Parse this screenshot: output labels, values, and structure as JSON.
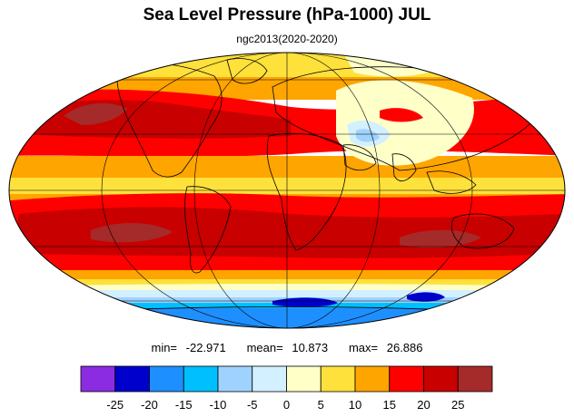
{
  "title": "Sea Level Pressure (hPa-1000) JUL",
  "subtitle": "ngc2013(2020-2020)",
  "stats": {
    "min_label": "min=",
    "min_value": "-22.971",
    "mean_label": "mean=",
    "mean_value": "10.873",
    "max_label": "max=",
    "max_value": "26.886"
  },
  "colorbar": {
    "colors": [
      "#8b2be2",
      "#0000cd",
      "#1e8fff",
      "#00bfff",
      "#a0d2ff",
      "#d2f0ff",
      "#ffffc8",
      "#ffe13c",
      "#ffa500",
      "#ff0000",
      "#c80000",
      "#a52a2a"
    ],
    "tick_labels": [
      "-25",
      "-20",
      "-15",
      "-10",
      "-5",
      "0",
      "5",
      "10",
      "15",
      "20",
      "25"
    ]
  },
  "map": {
    "projection": "mollweide",
    "colors": {
      "yellow": "#ffe13c",
      "orange": "#ffa500",
      "red": "#ff0000",
      "darkred": "#c80000",
      "brown": "#a52a2a",
      "pale": "#ffffc8",
      "lightcyan": "#d2f0ff",
      "lightblue": "#a0d2ff",
      "skyblue": "#00bfff",
      "blue": "#1e8fff",
      "darkblue": "#0000cd"
    }
  }
}
